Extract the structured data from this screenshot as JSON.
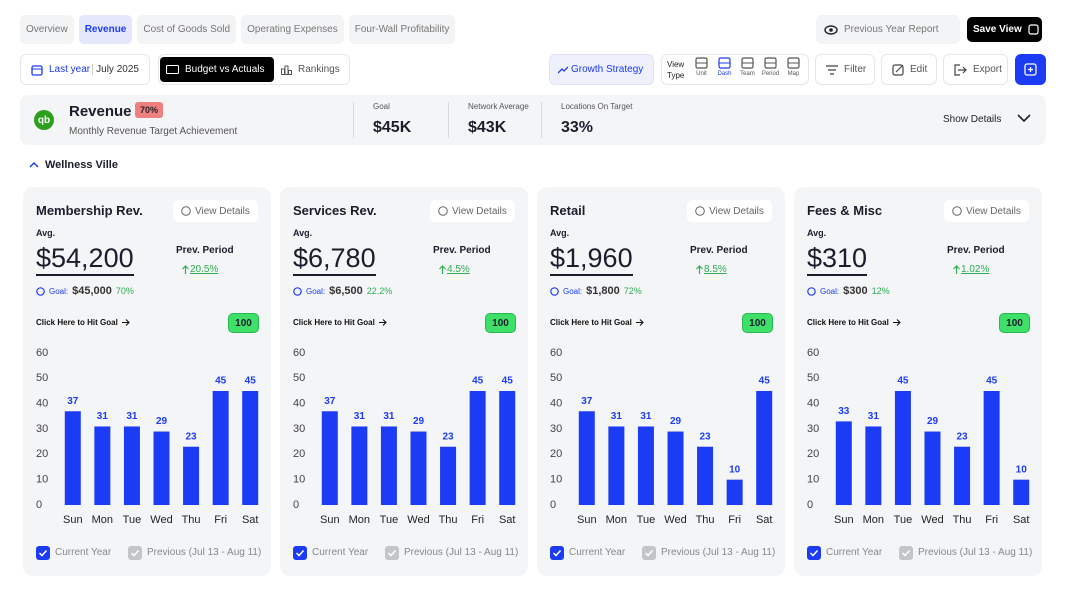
{
  "tabs": [
    "Overview",
    "Revenue",
    "Cost of Goods Sold",
    "Operating Expenses",
    "Four-Wall Profitability"
  ],
  "active_tab": 1,
  "header": {
    "previous_year_report": "Previous Year Report",
    "save_view": "Save View"
  },
  "toolbar": {
    "date_prefix": "Last year",
    "date": "July 2025",
    "budget": "Budget vs Actuals",
    "rankings": "Rankings",
    "growth": "Growth Strategy",
    "view_type": "View Type",
    "view_options": [
      "Unit",
      "Dash",
      "Team",
      "Period",
      "Map"
    ],
    "active_view": 1,
    "filter": "Filter",
    "edit": "Edit",
    "export": "Export"
  },
  "summary": {
    "logo": "qb",
    "title": "Revenue",
    "badge": "70%",
    "subtitle": "Monthly Revenue Target Achievement",
    "stats": [
      {
        "label": "Goal",
        "value": "$45K"
      },
      {
        "label": "Network Average",
        "value": "$43K"
      },
      {
        "label": "Locations On Target",
        "value": "33%"
      }
    ],
    "show_details": "Show Details"
  },
  "section": "Wellness Ville",
  "cards": [
    {
      "title": "Membership Rev.",
      "view_details": "View Details",
      "avg_label": "Avg.",
      "amount": "$54,200",
      "goal_label": "Goal:",
      "goal": "$45,000",
      "goal_pct": "70%",
      "prev_label": "Prev. Period",
      "prev_change": "20.5%",
      "cta": "Click Here to Hit Goal",
      "score": "100"
    },
    {
      "title": "Services Rev.",
      "view_details": "View Details",
      "avg_label": "Avg.",
      "amount": "$6,780",
      "goal_label": "Goal:",
      "goal": "$6,500",
      "goal_pct": "22.2%",
      "prev_label": "Prev. Period",
      "prev_change": "4.5%",
      "cta": "Click Here to Hit Goal",
      "score": "100"
    },
    {
      "title": "Retail",
      "view_details": "View Details",
      "avg_label": "Avg.",
      "amount": "$1,960",
      "goal_label": "Goal:",
      "goal": "$1,800",
      "goal_pct": "72%",
      "prev_label": "Prev. Period",
      "prev_change": "8.5%",
      "cta": "Click Here to Hit Goal",
      "score": "100"
    },
    {
      "title": "Fees & Misc",
      "view_details": "View Details",
      "avg_label": "Avg.",
      "amount": "$310",
      "goal_label": "Goal:",
      "goal": "$300",
      "goal_pct": "12%",
      "prev_label": "Prev. Period",
      "prev_change": "1.02%",
      "cta": "Click Here to Hit Goal",
      "score": "100"
    }
  ],
  "chart_data": [
    {
      "type": "bar",
      "categories": [
        "Sun",
        "Mon",
        "Tue",
        "Wed",
        "Thu",
        "Fri",
        "Sat"
      ],
      "series": [
        {
          "name": "Current Year",
          "color": "#1c3bf5",
          "values": [
            37,
            31,
            31,
            29,
            23,
            45,
            45
          ]
        }
      ],
      "inactive_series": [
        "Previous (Jul 13 - Aug 11)"
      ],
      "ylim": [
        0,
        60
      ],
      "yticks": [
        0,
        10,
        20,
        30,
        40,
        50,
        60
      ],
      "grid": false
    },
    {
      "type": "bar",
      "categories": [
        "Sun",
        "Mon",
        "Tue",
        "Wed",
        "Thu",
        "Fri",
        "Sat"
      ],
      "series": [
        {
          "name": "Current Year",
          "color": "#1c3bf5",
          "values": [
            37,
            31,
            31,
            29,
            23,
            45,
            45
          ]
        }
      ],
      "inactive_series": [
        "Previous (Jul 13 - Aug 11)"
      ],
      "ylim": [
        0,
        60
      ],
      "yticks": [
        0,
        10,
        20,
        30,
        40,
        50,
        60
      ],
      "grid": false
    },
    {
      "type": "bar",
      "categories": [
        "Sun",
        "Mon",
        "Tue",
        "Wed",
        "Thu",
        "Fri",
        "Sat"
      ],
      "series": [
        {
          "name": "Current Year",
          "color": "#1c3bf5",
          "values": [
            37,
            31,
            31,
            29,
            23,
            10,
            45
          ]
        }
      ],
      "inactive_series": [
        "Previous (Jul 13 - Aug 11)"
      ],
      "ylim": [
        0,
        60
      ],
      "yticks": [
        0,
        10,
        20,
        30,
        40,
        50,
        60
      ],
      "grid": false
    },
    {
      "type": "bar",
      "categories": [
        "Sun",
        "Mon",
        "Tue",
        "Wed",
        "Thu",
        "Fri",
        "Sat"
      ],
      "series": [
        {
          "name": "Current Year",
          "color": "#1c3bf5",
          "values": [
            33,
            31,
            45,
            29,
            23,
            45,
            10
          ]
        }
      ],
      "inactive_series": [
        "Previous (Jul 13 - Aug 11)"
      ],
      "ylim": [
        0,
        60
      ],
      "yticks": [
        0,
        10,
        20,
        30,
        40,
        50,
        60
      ],
      "grid": false
    }
  ]
}
